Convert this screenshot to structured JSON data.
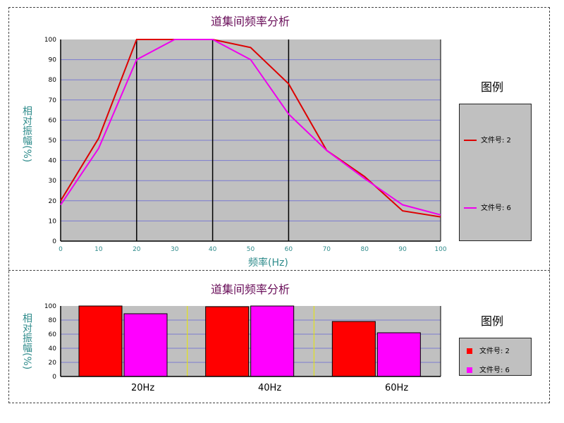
{
  "chart_data": [
    {
      "type": "line",
      "title": "道集间频率分析",
      "xlabel": "频率(Hz)",
      "ylabel": "相对振幅(%)",
      "xlim": [
        0,
        100
      ],
      "ylim": [
        0,
        100
      ],
      "x": [
        0,
        10,
        20,
        30,
        40,
        50,
        60,
        70,
        80,
        90,
        100
      ],
      "xticks": [
        "0",
        "10",
        "20",
        "30",
        "40",
        "50",
        "60",
        "70",
        "80",
        "90",
        "100"
      ],
      "yticks": [
        "0",
        "10",
        "20",
        "30",
        "40",
        "50",
        "60",
        "70",
        "80",
        "90",
        "100"
      ],
      "vertical_markers": [
        20,
        40,
        60
      ],
      "series": [
        {
          "name": "文件号: 2",
          "color": "#dd0000",
          "values": [
            20,
            51,
            100,
            100,
            100,
            96,
            78,
            45,
            32,
            15,
            12
          ]
        },
        {
          "name": "文件号: 6",
          "color": "#ee00ee",
          "values": [
            18,
            46,
            90,
            100,
            100,
            90,
            63,
            45,
            31,
            18,
            13
          ]
        }
      ],
      "legend_title": "图例",
      "legend_position": "right",
      "grid": true
    },
    {
      "type": "bar",
      "title": "道集间频率分析",
      "ylabel": "相对振幅(%)",
      "ylim": [
        0,
        100
      ],
      "yticks": [
        "0",
        "20",
        "40",
        "60",
        "80",
        "100"
      ],
      "categories": [
        "20Hz",
        "40Hz",
        "60Hz"
      ],
      "series": [
        {
          "name": "文件号: 2",
          "color": "#ff0000",
          "values": [
            100,
            99,
            78
          ]
        },
        {
          "name": "文件号: 6",
          "color": "#ff00ff",
          "values": [
            89,
            100,
            62
          ]
        }
      ],
      "legend_title": "图例",
      "legend_position": "right",
      "grid": true
    }
  ]
}
